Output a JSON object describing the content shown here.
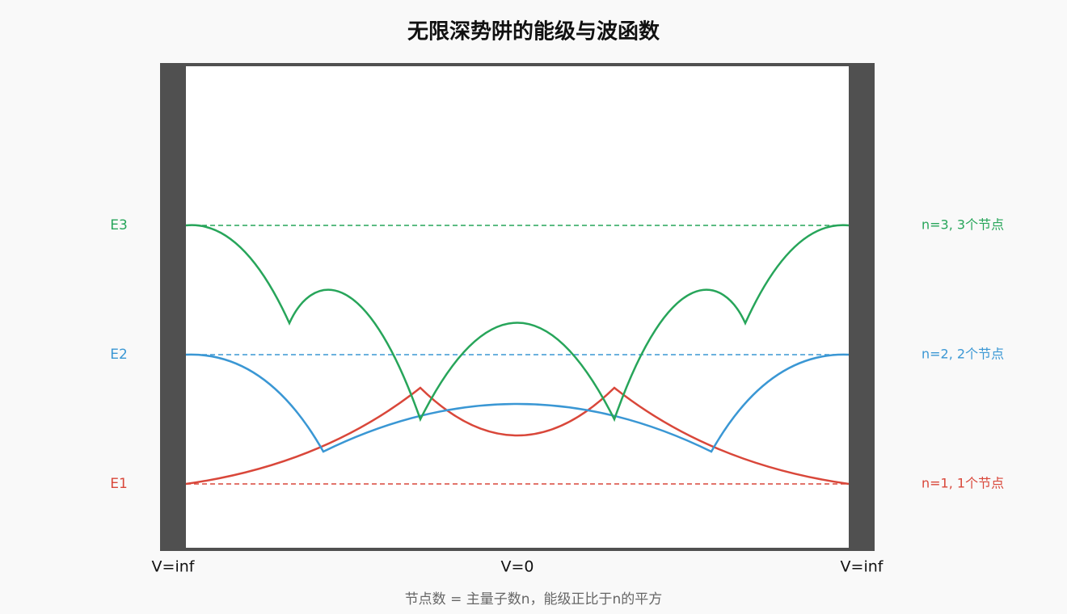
{
  "title": "无限深势阱的能级与波函数",
  "levels": [
    {
      "label": "E1",
      "note": "n=1, 1个节点"
    },
    {
      "label": "E2",
      "note": "n=2, 2个节点"
    },
    {
      "label": "E3",
      "note": "n=3, 3个节点"
    }
  ],
  "x_labels": [
    "V=inf",
    "V=0",
    "V=inf"
  ],
  "footnote": "节点数 = 主量子数n，能级正比于n的平方"
}
